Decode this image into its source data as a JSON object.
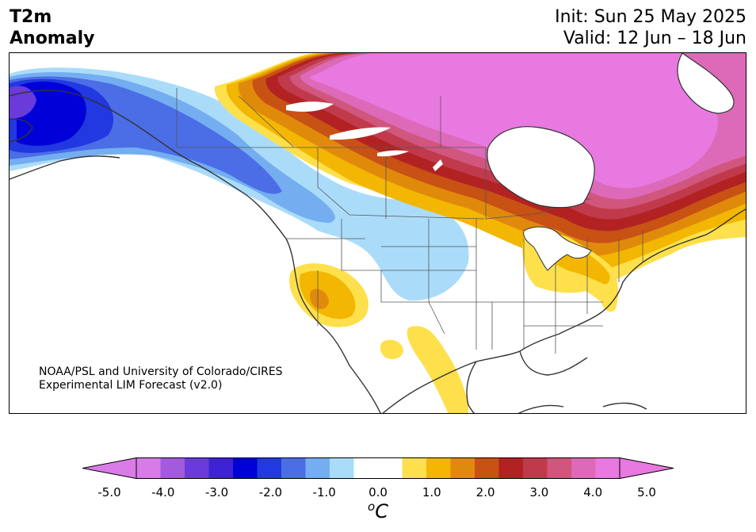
{
  "title": {
    "line1": "T2m",
    "line2": "Anomaly"
  },
  "forecast": {
    "init": "Init: Sun 25 May 2025",
    "valid": "Valid: 12 Jun – 18 Jun"
  },
  "attribution": {
    "line1": "NOAA/PSL and University of Colorado/CIRES",
    "line2": "Experimental LIM Forecast (v2.0)"
  },
  "colorbar": {
    "ticks": [
      "-5.0",
      "-4.0",
      "-3.0",
      "-2.0",
      "-1.0",
      "0.0",
      "1.0",
      "2.0",
      "3.0",
      "4.0",
      "5.0"
    ],
    "unit_symbol": "o",
    "unit_letter": "C",
    "colors": [
      "#d77be7",
      "#a35add",
      "#6a3adb",
      "#3f22d5",
      "#0000d8",
      "#2238e0",
      "#4b6ee6",
      "#74aef0",
      "#aadcfa",
      "#ffffff",
      "#ffffff",
      "#fde04b",
      "#f2b603",
      "#e08a0c",
      "#c85114",
      "#b22222",
      "#c03a4c",
      "#d0567e",
      "#dc6ab8",
      "#e879e0"
    ],
    "under_color": "#da7ce8",
    "over_color": "#e879e0"
  }
}
